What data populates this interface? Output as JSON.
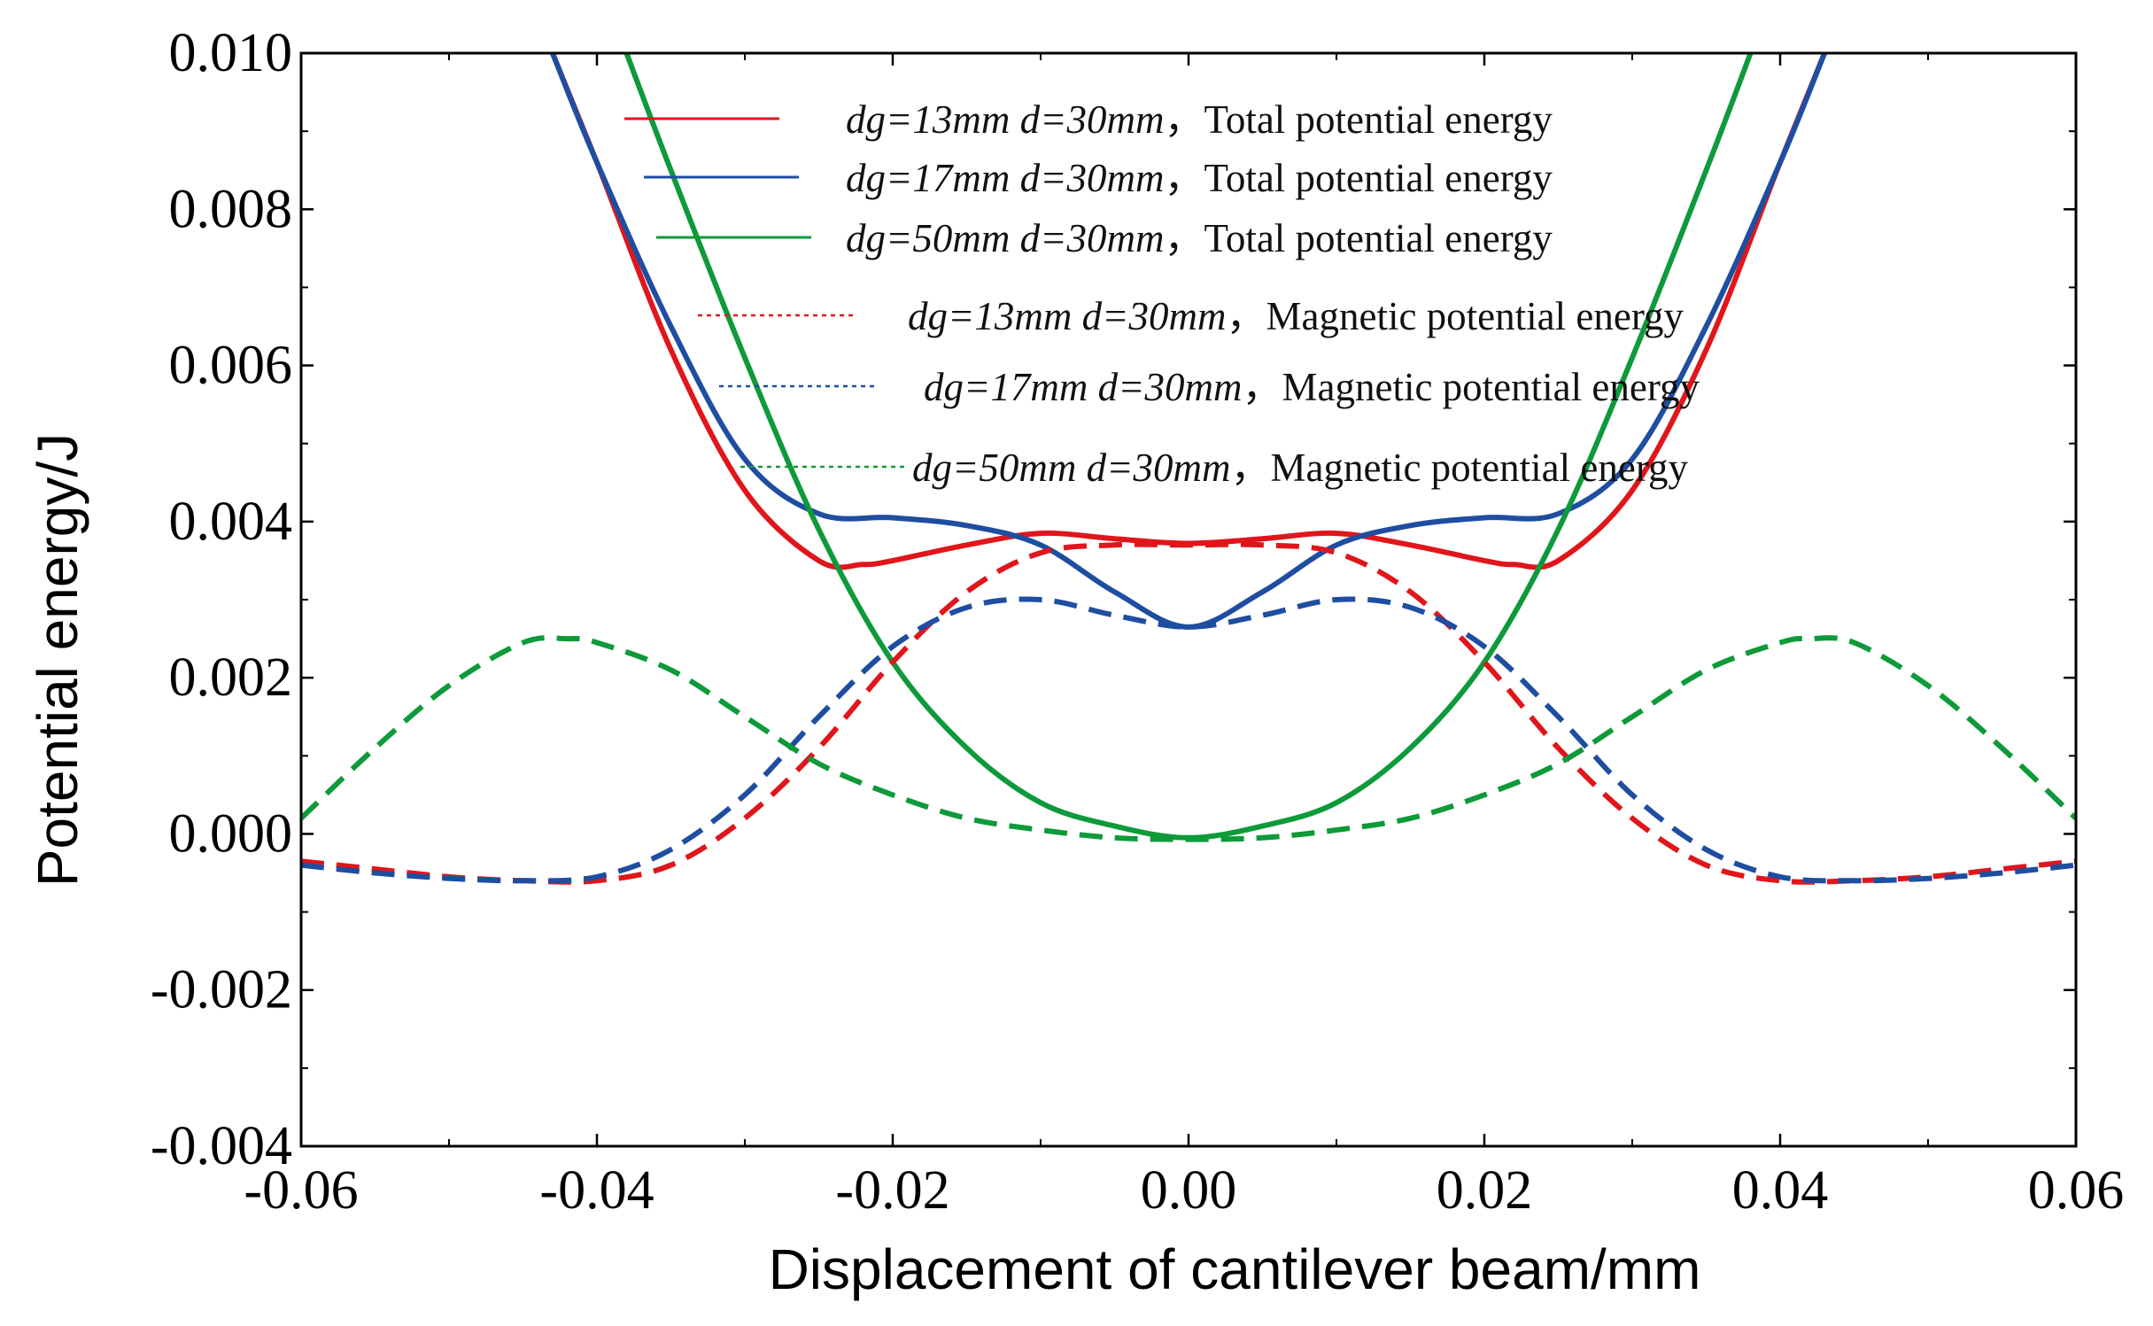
{
  "chart_data": {
    "type": "line",
    "title": "",
    "xlabel": "Displacement of cantilever beam/mm",
    "ylabel": "Potential energy/J",
    "xlim": [
      -0.06,
      0.06
    ],
    "ylim": [
      -0.004,
      0.01
    ],
    "x_ticks": [
      -0.06,
      -0.04,
      -0.02,
      0.0,
      0.02,
      0.04,
      0.06
    ],
    "x_tick_labels": [
      "-0.06",
      "-0.04",
      "-0.02",
      "0.00",
      "0.02",
      "0.04",
      "0.06"
    ],
    "y_ticks": [
      -0.004,
      -0.002,
      0.0,
      0.002,
      0.004,
      0.006,
      0.008,
      0.01
    ],
    "y_tick_labels": [
      "-0.004",
      "-0.002",
      "0.000",
      "0.002",
      "0.004",
      "0.006",
      "0.008",
      "0.010"
    ],
    "grid": false,
    "legend_position": "top-center",
    "x": [
      -0.06,
      -0.055,
      -0.05,
      -0.045,
      -0.04,
      -0.035,
      -0.03,
      -0.025,
      -0.02,
      -0.015,
      -0.01,
      -0.005,
      0.0,
      0.005,
      0.01,
      0.015,
      0.02,
      0.025,
      0.03,
      0.035,
      0.04,
      0.045,
      0.05,
      0.055,
      0.06
    ],
    "series": [
      {
        "name": "dg=13mm d=30mm，Total potential energy",
        "italic_part": "dg=13mm d=30mm",
        "text_part": "，Total potential energy",
        "color": "#e0161b",
        "dash": "solid",
        "x": [
          -0.043,
          -0.04,
          -0.035,
          -0.03,
          -0.025,
          -0.022,
          -0.02,
          -0.015,
          -0.01,
          -0.005,
          0.0,
          0.005,
          0.01,
          0.015,
          0.02,
          0.022,
          0.025,
          0.03,
          0.035,
          0.04,
          0.043
        ],
        "values": [
          0.01,
          0.0086,
          0.0062,
          0.0044,
          0.0035,
          0.00345,
          0.0035,
          0.0037,
          0.00385,
          0.00378,
          0.00372,
          0.00378,
          0.00385,
          0.0037,
          0.0035,
          0.00345,
          0.0035,
          0.0044,
          0.0062,
          0.0086,
          0.01
        ]
      },
      {
        "name": "dg=17mm d=30mm，Total potential energy",
        "italic_part": "dg=17mm d=30mm",
        "text_part": "，Total potential energy",
        "color": "#1f4ea1",
        "dash": "solid",
        "x": [
          -0.043,
          -0.04,
          -0.035,
          -0.03,
          -0.025,
          -0.02,
          -0.015,
          -0.01,
          -0.005,
          0.0,
          0.005,
          0.01,
          0.015,
          0.02,
          0.025,
          0.03,
          0.035,
          0.04,
          0.043
        ],
        "values": [
          0.01,
          0.0086,
          0.0065,
          0.0048,
          0.0041,
          0.00405,
          0.00395,
          0.0037,
          0.0031,
          0.00265,
          0.0031,
          0.0037,
          0.00395,
          0.00405,
          0.0041,
          0.0048,
          0.0065,
          0.0086,
          0.01
        ]
      },
      {
        "name": "dg=50mm d=30mm，Total potential energy",
        "italic_part": "dg=50mm d=30mm",
        "text_part": "，Total potential energy",
        "color": "#0e9a3a",
        "dash": "solid",
        "x": [
          -0.038,
          -0.035,
          -0.03,
          -0.025,
          -0.02,
          -0.015,
          -0.01,
          -0.005,
          0.0,
          0.005,
          0.01,
          0.015,
          0.02,
          0.025,
          0.03,
          0.035,
          0.038
        ],
        "values": [
          0.01,
          0.0085,
          0.0061,
          0.0039,
          0.0022,
          0.0011,
          0.0004,
          0.0001,
          -5e-05,
          0.0001,
          0.0004,
          0.0011,
          0.0022,
          0.0039,
          0.0061,
          0.0085,
          0.01
        ]
      },
      {
        "name": "dg=13mm d=30mm，Magnetic potential energy",
        "italic_part": "dg=13mm d=30mm",
        "text_part": "，Magnetic potential energy",
        "color": "#e0161b",
        "dash": "dashed",
        "x": [
          -0.06,
          -0.055,
          -0.05,
          -0.045,
          -0.04,
          -0.035,
          -0.03,
          -0.025,
          -0.02,
          -0.015,
          -0.01,
          -0.005,
          0.0,
          0.005,
          0.01,
          0.015,
          0.02,
          0.025,
          0.03,
          0.035,
          0.04,
          0.045,
          0.05,
          0.055,
          0.06
        ],
        "values": [
          -0.00035,
          -0.00045,
          -0.00055,
          -0.0006,
          -0.0006,
          -0.0004,
          0.0002,
          0.0011,
          0.0022,
          0.0031,
          0.0036,
          0.0037,
          0.0037,
          0.0037,
          0.0036,
          0.0031,
          0.0022,
          0.0011,
          0.0002,
          -0.0004,
          -0.0006,
          -0.0006,
          -0.00055,
          -0.00045,
          -0.00035
        ]
      },
      {
        "name": "dg=17mm d=30mm，Magnetic potential energy",
        "italic_part": "dg=17mm d=30mm",
        "text_part": "，Magnetic potential energy",
        "color": "#1f4ea1",
        "dash": "dashed",
        "x": [
          -0.06,
          -0.055,
          -0.05,
          -0.045,
          -0.04,
          -0.035,
          -0.03,
          -0.025,
          -0.02,
          -0.015,
          -0.01,
          -0.005,
          0.0,
          0.005,
          0.01,
          0.015,
          0.02,
          0.025,
          0.03,
          0.035,
          0.04,
          0.045,
          0.05,
          0.055,
          0.06
        ],
        "values": [
          -0.0004,
          -0.0005,
          -0.00057,
          -0.0006,
          -0.00055,
          -0.0002,
          0.0005,
          0.0015,
          0.0024,
          0.0029,
          0.003,
          0.0028,
          0.00265,
          0.0028,
          0.003,
          0.0029,
          0.0024,
          0.0015,
          0.0005,
          -0.0002,
          -0.00055,
          -0.0006,
          -0.00057,
          -0.0005,
          -0.0004
        ]
      },
      {
        "name": "dg=50mm d=30mm，Magnetic potential energy",
        "italic_part": "dg=50mm d=30mm",
        "text_part": "，Magnetic potential energy",
        "color": "#0e9a3a",
        "dash": "dashed",
        "x": [
          -0.06,
          -0.055,
          -0.05,
          -0.045,
          -0.042,
          -0.04,
          -0.035,
          -0.03,
          -0.025,
          -0.02,
          -0.015,
          -0.01,
          -0.005,
          0.0,
          0.005,
          0.01,
          0.015,
          0.02,
          0.025,
          0.03,
          0.035,
          0.04,
          0.042,
          0.045,
          0.05,
          0.055,
          0.06
        ],
        "values": [
          0.0002,
          0.0011,
          0.0019,
          0.00245,
          0.0025,
          0.00245,
          0.0021,
          0.0015,
          0.0009,
          0.0005,
          0.0002,
          5e-05,
          -5e-05,
          -7e-05,
          -5e-05,
          5e-05,
          0.0002,
          0.0005,
          0.0009,
          0.0015,
          0.0021,
          0.00245,
          0.0025,
          0.00245,
          0.0019,
          0.0011,
          0.0002
        ]
      }
    ]
  }
}
